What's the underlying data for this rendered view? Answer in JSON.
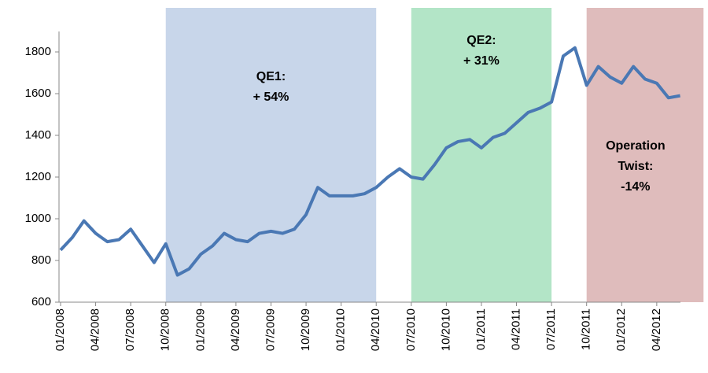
{
  "chart_data": {
    "type": "line",
    "x": [
      "01/2008",
      "02/2008",
      "03/2008",
      "04/2008",
      "05/2008",
      "06/2008",
      "07/2008",
      "08/2008",
      "09/2008",
      "10/2008",
      "11/2008",
      "12/2008",
      "01/2009",
      "02/2009",
      "03/2009",
      "04/2009",
      "05/2009",
      "06/2009",
      "07/2009",
      "08/2009",
      "09/2009",
      "10/2009",
      "11/2009",
      "12/2009",
      "01/2010",
      "02/2010",
      "03/2010",
      "04/2010",
      "05/2010",
      "06/2010",
      "07/2010",
      "08/2010",
      "09/2010",
      "10/2010",
      "11/2010",
      "12/2010",
      "01/2011",
      "02/2011",
      "03/2011",
      "04/2011",
      "05/2011",
      "06/2011",
      "07/2011",
      "08/2011",
      "09/2011",
      "10/2011",
      "11/2011",
      "12/2011",
      "01/2012",
      "02/2012",
      "03/2012",
      "04/2012",
      "05/2012",
      "06/2012"
    ],
    "series": [
      {
        "color": "#4a78b4",
        "values": [
          850,
          910,
          990,
          930,
          890,
          900,
          950,
          870,
          790,
          880,
          730,
          760,
          830,
          870,
          930,
          900,
          890,
          930,
          940,
          930,
          950,
          1020,
          1150,
          1110,
          1110,
          1110,
          1120,
          1150,
          1200,
          1240,
          1200,
          1190,
          1260,
          1340,
          1370,
          1380,
          1340,
          1390,
          1410,
          1460,
          1510,
          1530,
          1560,
          1780,
          1820,
          1640,
          1730,
          1680,
          1650,
          1730,
          1670,
          1650,
          1580,
          1590
        ]
      }
    ],
    "xticks": [
      "01/2008",
      "04/2008",
      "07/2008",
      "10/2008",
      "01/2009",
      "04/2009",
      "07/2009",
      "10/2009",
      "01/2010",
      "04/2010",
      "07/2010",
      "10/2010",
      "01/2011",
      "04/2011",
      "07/2011",
      "10/2011",
      "01/2012",
      "04/2012"
    ],
    "ylim": [
      600,
      1800
    ],
    "yticks": [
      600,
      800,
      1000,
      1200,
      1400,
      1600,
      1800
    ],
    "regions": [
      {
        "start": "10/2008",
        "end": "04/2010",
        "color": "#c8d6ea",
        "label": [
          "QE1:",
          "+ 54%"
        ]
      },
      {
        "start": "07/2010",
        "end": "07/2011",
        "color": "#b3e5c7",
        "label": [
          "QE2:",
          "+ 31%"
        ]
      },
      {
        "start": "10/2011",
        "end": "08/2012",
        "color": "#dfbcbc",
        "label": [
          "Operation",
          "Twist:",
          "-14%"
        ]
      }
    ]
  }
}
